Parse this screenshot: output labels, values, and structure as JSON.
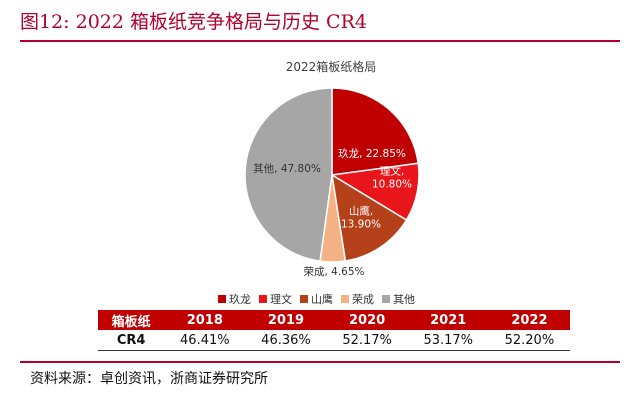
{
  "figure": {
    "title": "图12:   2022 箱板纸竞争格局与历史 CR4",
    "source": "资料来源：卓创资讯，浙商证券研究所"
  },
  "chart_data": {
    "type": "pie",
    "title": "2022箱板纸格局",
    "slices": [
      {
        "name": "玖龙",
        "value": 22.85,
        "label_lines": [
          "玖龙, 22.85%"
        ],
        "color": "#c00000",
        "label_color": "#ffffff"
      },
      {
        "name": "理文",
        "value": 10.8,
        "label_lines": [
          "理文,",
          "10.80%"
        ],
        "color": "#e8161b",
        "label_color": "#ffffff"
      },
      {
        "name": "山鹰",
        "value": 13.9,
        "label_lines": [
          "山鹰,",
          "13.90%"
        ],
        "color": "#b5411a",
        "label_color": "#ffffff"
      },
      {
        "name": "荣成",
        "value": 4.65,
        "label_lines": [
          "荣成, 4.65%"
        ],
        "color": "#f4b183",
        "label_color": "#333333"
      },
      {
        "name": "其他",
        "value": 47.8,
        "label_lines": [
          "其他, 47.80%"
        ],
        "color": "#a6a6a6",
        "label_color": "#333333"
      }
    ],
    "legend": {
      "placement": "bottom",
      "items": [
        {
          "label": "玖龙",
          "color": "#c00000"
        },
        {
          "label": "理文",
          "color": "#e8161b"
        },
        {
          "label": "山鹰",
          "color": "#b5411a"
        },
        {
          "label": "荣成",
          "color": "#f4b183"
        },
        {
          "label": "其他",
          "color": "#a6a6a6"
        }
      ]
    }
  },
  "table": {
    "header": [
      "箱板纸",
      "2018",
      "2019",
      "2020",
      "2021",
      "2022"
    ],
    "rows": [
      [
        "CR4",
        "46.41%",
        "46.36%",
        "52.17%",
        "53.17%",
        "52.20%"
      ]
    ]
  },
  "colors": {
    "accent": "#b3002d",
    "table_header": "#c00000"
  }
}
